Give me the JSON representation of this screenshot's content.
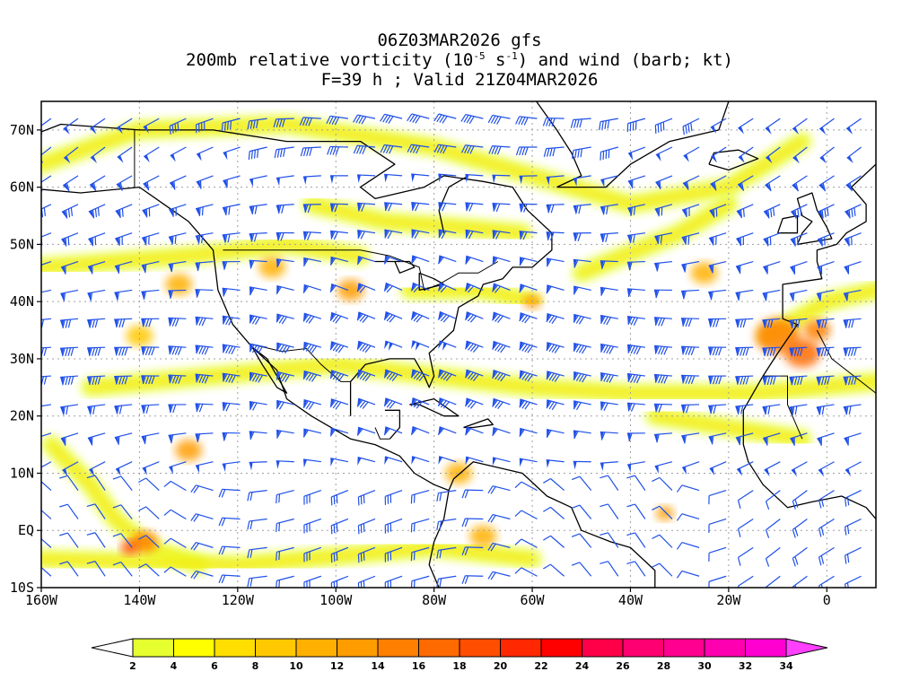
{
  "title": {
    "line1": "06Z03MAR2026 gfs",
    "line2_pre": "200mb relative vorticity (10",
    "line2_exp1": "-5",
    "line2_mid": " s",
    "line2_exp2": "-1",
    "line2_post": ") and wind (barb; kt)",
    "line3": "F=39 h ; Valid 21Z04MAR2026"
  },
  "axes": {
    "lon_ticks": [
      {
        "lon": -160,
        "label": "160W"
      },
      {
        "lon": -140,
        "label": "140W"
      },
      {
        "lon": -120,
        "label": "120W"
      },
      {
        "lon": -100,
        "label": "100W"
      },
      {
        "lon": -80,
        "label": "80W"
      },
      {
        "lon": -60,
        "label": "60W"
      },
      {
        "lon": -40,
        "label": "40W"
      },
      {
        "lon": -20,
        "label": "20W"
      },
      {
        "lon": 0,
        "label": "0"
      }
    ],
    "lat_ticks": [
      {
        "lat": 70,
        "label": "70N"
      },
      {
        "lat": 60,
        "label": "60N"
      },
      {
        "lat": 50,
        "label": "50N"
      },
      {
        "lat": 40,
        "label": "40N"
      },
      {
        "lat": 30,
        "label": "30N"
      },
      {
        "lat": 20,
        "label": "20N"
      },
      {
        "lat": 10,
        "label": "10N"
      },
      {
        "lat": 0,
        "label": "EQ"
      },
      {
        "lat": -10,
        "label": "10S"
      }
    ],
    "lon_range": [
      -160,
      10
    ],
    "lat_range": [
      -10,
      75
    ]
  },
  "colorbar": {
    "labels": [
      "2",
      "4",
      "6",
      "8",
      "10",
      "12",
      "14",
      "16",
      "18",
      "20",
      "22",
      "24",
      "26",
      "28",
      "30",
      "32",
      "34"
    ],
    "colors": [
      "#e6ff2e",
      "#ffff00",
      "#ffde00",
      "#ffc800",
      "#ffb000",
      "#ff9c00",
      "#ff8000",
      "#ff6a00",
      "#ff4e00",
      "#ff2800",
      "#ff0000",
      "#ff0048",
      "#ff0070",
      "#ff0090",
      "#ff00b0",
      "#ff00d0",
      "#ff00f0"
    ],
    "low_color": "#ffffff",
    "high_color": "#ff40ff"
  },
  "colors": {
    "barb": "#2050e8",
    "coast": "#000000",
    "grid": "#a0a0a0"
  }
}
